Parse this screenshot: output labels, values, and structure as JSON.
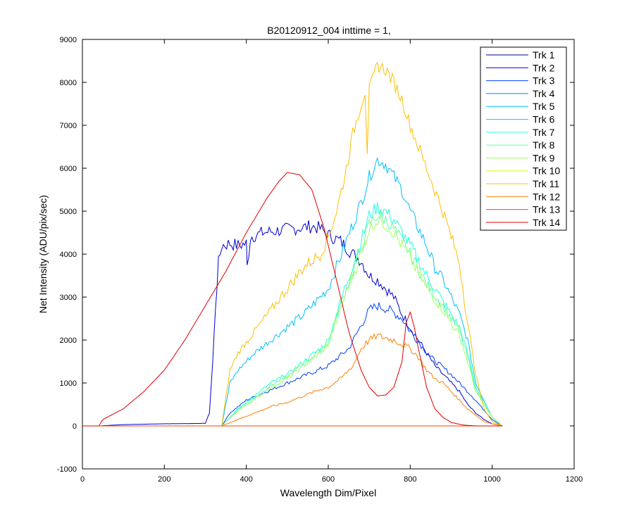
{
  "chart_data": {
    "type": "line",
    "title": "B20120912_004 inttime = 1,",
    "xlabel": "Wavelength Dim/Pixel",
    "ylabel": "Net Intensity (ADU/pix/sec)",
    "xlim": [
      0,
      1200
    ],
    "ylim": [
      -1000,
      9000
    ],
    "xticks": [
      0,
      200,
      400,
      600,
      800,
      1000,
      1200
    ],
    "yticks": [
      -1000,
      0,
      1000,
      2000,
      3000,
      4000,
      5000,
      6000,
      7000,
      8000,
      9000
    ],
    "grid": false,
    "legend_position": "top-right",
    "series": [
      {
        "name": "Trk 1",
        "color": "#00008f",
        "x": [
          0,
          1025
        ],
        "y": [
          0,
          0
        ]
      },
      {
        "name": "Trk 2",
        "color": "#0000d0",
        "x": [
          0,
          40,
          100,
          200,
          300,
          310,
          318,
          325,
          332,
          340,
          360,
          380,
          400,
          402,
          410,
          440,
          480,
          520,
          560,
          580,
          600,
          630,
          660,
          680,
          700,
          720,
          740,
          760,
          780,
          800,
          820,
          840,
          860,
          880,
          900,
          920,
          940,
          960,
          980,
          1000,
          1025
        ],
        "y": [
          0,
          0,
          30,
          50,
          60,
          300,
          1500,
          2800,
          3800,
          4200,
          4250,
          4200,
          4250,
          3700,
          4400,
          4500,
          4550,
          4600,
          4650,
          4600,
          4450,
          4300,
          4000,
          3850,
          3500,
          3400,
          3200,
          3000,
          2600,
          2300,
          2000,
          1700,
          1400,
          1200,
          1000,
          800,
          500,
          300,
          150,
          50,
          0
        ]
      },
      {
        "name": "Trk 3",
        "color": "#0040ff",
        "x": [
          0,
          340,
          360,
          400,
          450,
          500,
          550,
          600,
          650,
          700,
          720,
          750,
          780,
          800,
          850,
          900,
          950,
          1000,
          1025
        ],
        "y": [
          0,
          0,
          300,
          600,
          800,
          1000,
          1200,
          1400,
          1800,
          2700,
          2800,
          2700,
          2500,
          2200,
          1600,
          1200,
          700,
          150,
          0
        ]
      },
      {
        "name": "Trk 4",
        "color": "#0080ff",
        "x": [
          0,
          1025
        ],
        "y": [
          0,
          0
        ]
      },
      {
        "name": "Trk 5",
        "color": "#00bfff",
        "x": [
          0,
          340,
          360,
          380,
          420,
          460,
          500,
          540,
          580,
          600,
          640,
          680,
          700,
          720,
          740,
          760,
          780,
          800,
          840,
          860,
          880,
          900,
          920,
          940,
          960,
          980,
          1000,
          1025
        ],
        "y": [
          0,
          0,
          1000,
          1300,
          1700,
          2000,
          2300,
          2600,
          3000,
          3200,
          4200,
          5200,
          5800,
          6200,
          6100,
          5800,
          5500,
          5000,
          4200,
          3700,
          3400,
          3000,
          2600,
          2000,
          1000,
          600,
          200,
          0
        ]
      },
      {
        "name": "Trk 6",
        "color": "#00dfe0",
        "x": [
          0,
          1025
        ],
        "y": [
          0,
          0
        ]
      },
      {
        "name": "Trk 7",
        "color": "#20ffdf",
        "x": [
          0,
          340,
          380,
          420,
          460,
          500,
          540,
          580,
          600,
          640,
          680,
          700,
          720,
          740,
          760,
          780,
          800,
          840,
          880,
          920,
          940,
          960,
          1000,
          1025
        ],
        "y": [
          0,
          0,
          400,
          700,
          1000,
          1200,
          1500,
          1800,
          2000,
          3200,
          4300,
          4900,
          5100,
          5000,
          4800,
          4500,
          4200,
          3500,
          2900,
          2300,
          1700,
          900,
          200,
          0
        ]
      },
      {
        "name": "Trk 8",
        "color": "#60ff9f",
        "x": [
          0,
          340,
          380,
          420,
          460,
          500,
          540,
          580,
          600,
          640,
          680,
          700,
          720,
          740,
          760,
          780,
          800,
          840,
          880,
          920,
          940,
          960,
          1000,
          1025
        ],
        "y": [
          0,
          0,
          380,
          650,
          950,
          1150,
          1450,
          1750,
          1950,
          3100,
          4100,
          4700,
          4900,
          4800,
          4600,
          4300,
          4000,
          3300,
          2800,
          2200,
          1600,
          850,
          200,
          0
        ]
      },
      {
        "name": "Trk 9",
        "color": "#a0ff60",
        "x": [
          0,
          340,
          380,
          420,
          460,
          500,
          540,
          580,
          600,
          640,
          680,
          700,
          720,
          740,
          760,
          780,
          800,
          840,
          880,
          920,
          940,
          960,
          1000,
          1025
        ],
        "y": [
          0,
          0,
          360,
          620,
          900,
          1100,
          1400,
          1700,
          1900,
          3000,
          4000,
          4600,
          4800,
          4700,
          4500,
          4200,
          3900,
          3200,
          2700,
          2100,
          1500,
          800,
          200,
          0
        ]
      },
      {
        "name": "Trk 10",
        "color": "#dfff20",
        "x": [
          0,
          1025
        ],
        "y": [
          0,
          0
        ]
      },
      {
        "name": "Trk 11",
        "color": "#ffbf00",
        "x": [
          0,
          340,
          360,
          380,
          420,
          460,
          500,
          540,
          580,
          600,
          620,
          640,
          660,
          680,
          690,
          695,
          700,
          720,
          740,
          760,
          780,
          800,
          840,
          880,
          920,
          940,
          960,
          980,
          1000,
          1025
        ],
        "y": [
          0,
          0,
          1300,
          1700,
          2200,
          2700,
          3200,
          3700,
          4000,
          4400,
          5000,
          5800,
          6800,
          7500,
          7800,
          6400,
          7800,
          8400,
          8300,
          8000,
          7600,
          7000,
          6000,
          5000,
          3800,
          2400,
          1200,
          400,
          100,
          0
        ]
      },
      {
        "name": "Trk 12",
        "color": "#ff8000",
        "x": [
          0,
          340,
          380,
          420,
          460,
          500,
          540,
          580,
          600,
          630,
          660,
          680,
          700,
          720,
          740,
          760,
          780,
          800,
          820,
          840,
          860,
          880,
          900,
          920,
          940,
          960,
          980,
          1000,
          1025
        ],
        "y": [
          0,
          0,
          150,
          300,
          450,
          550,
          700,
          850,
          900,
          1100,
          1400,
          1800,
          2000,
          2100,
          2050,
          2000,
          1900,
          1800,
          1600,
          1300,
          1100,
          1000,
          800,
          600,
          400,
          250,
          100,
          50,
          0
        ]
      },
      {
        "name": "Trk 13",
        "color": "#ff4000",
        "x": [
          0,
          1025
        ],
        "y": [
          0,
          0
        ]
      },
      {
        "name": "Trk 14",
        "color": "#e00000",
        "x": [
          0,
          40,
          50,
          100,
          150,
          200,
          250,
          300,
          350,
          400,
          450,
          480,
          500,
          530,
          560,
          590,
          620,
          650,
          680,
          700,
          720,
          740,
          760,
          780,
          790,
          800,
          810,
          820,
          840,
          860,
          880,
          900,
          930,
          960,
          1000,
          1025
        ],
        "y": [
          0,
          0,
          150,
          400,
          800,
          1300,
          2000,
          2800,
          3600,
          4500,
          5300,
          5700,
          5900,
          5850,
          5500,
          4600,
          3400,
          2200,
          1300,
          900,
          700,
          720,
          900,
          1500,
          2400,
          2650,
          2300,
          1800,
          900,
          400,
          200,
          80,
          20,
          0,
          0,
          0
        ]
      }
    ]
  }
}
